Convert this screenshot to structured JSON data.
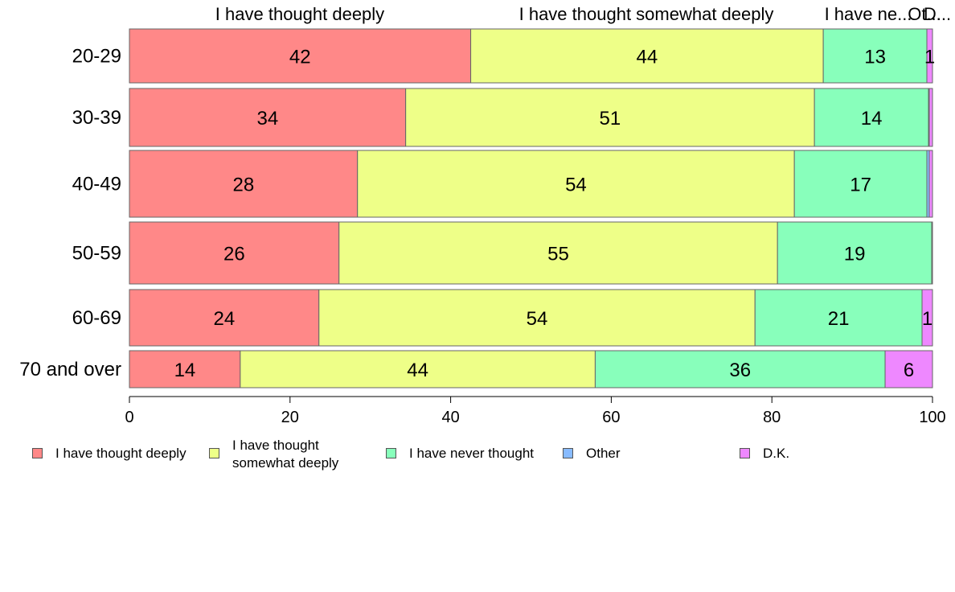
{
  "chart_data": {
    "type": "bar",
    "orientation": "horizontal",
    "stacked": true,
    "categories": [
      "20-29",
      "30-39",
      "40-49",
      "50-59",
      "60-69",
      "70 and over"
    ],
    "series": [
      {
        "name": "I have thought deeply",
        "color": "#ff8888",
        "values": [
          42.5,
          34.4,
          28.4,
          26.1,
          23.6,
          13.8
        ],
        "labels": [
          "42",
          "34",
          "28",
          "26",
          "24",
          "14"
        ]
      },
      {
        "name": "I have thought somewhat deeply",
        "color": "#eeff88",
        "values": [
          43.9,
          50.9,
          54.4,
          54.6,
          54.3,
          44.2
        ],
        "labels": [
          "44",
          "51",
          "54",
          "55",
          "54",
          "44"
        ]
      },
      {
        "name": "I have never thought",
        "color": "#88ffbb",
        "values": [
          12.9,
          14.2,
          16.5,
          19.2,
          20.8,
          36.1
        ],
        "labels": [
          "13",
          "14",
          "17",
          "19",
          "21",
          "36"
        ]
      },
      {
        "name": "Other",
        "color": "#88bbff",
        "values": [
          0.0,
          0.1,
          0.3,
          0.0,
          0.0,
          0.0
        ],
        "labels": [
          "",
          "",
          "",
          "",
          "",
          ""
        ]
      },
      {
        "name": "D.K.",
        "color": "#ee88ff",
        "values": [
          0.7,
          0.4,
          0.4,
          0.1,
          1.3,
          5.9
        ],
        "labels": [
          "1",
          "",
          "",
          "",
          "1",
          "6"
        ]
      }
    ],
    "top_labels": [
      "I have thought deeply",
      "I have thought somewhat deeply",
      "I have ne...",
      "Ot...",
      "D..."
    ],
    "xlim": [
      0,
      100
    ],
    "xticks": [
      0,
      20,
      40,
      60,
      80,
      100
    ],
    "grid": false,
    "legend_position": "bottom"
  },
  "legend": {
    "items": [
      {
        "label": "I have thought deeply",
        "color": "#ff8888"
      },
      {
        "label": "I have thought\nsomewhat deeply",
        "color": "#eeff88"
      },
      {
        "label": "I have never thought",
        "color": "#88ffbb"
      },
      {
        "label": "Other",
        "color": "#88bbff"
      },
      {
        "label": "D.K.",
        "color": "#ee88ff"
      }
    ]
  }
}
